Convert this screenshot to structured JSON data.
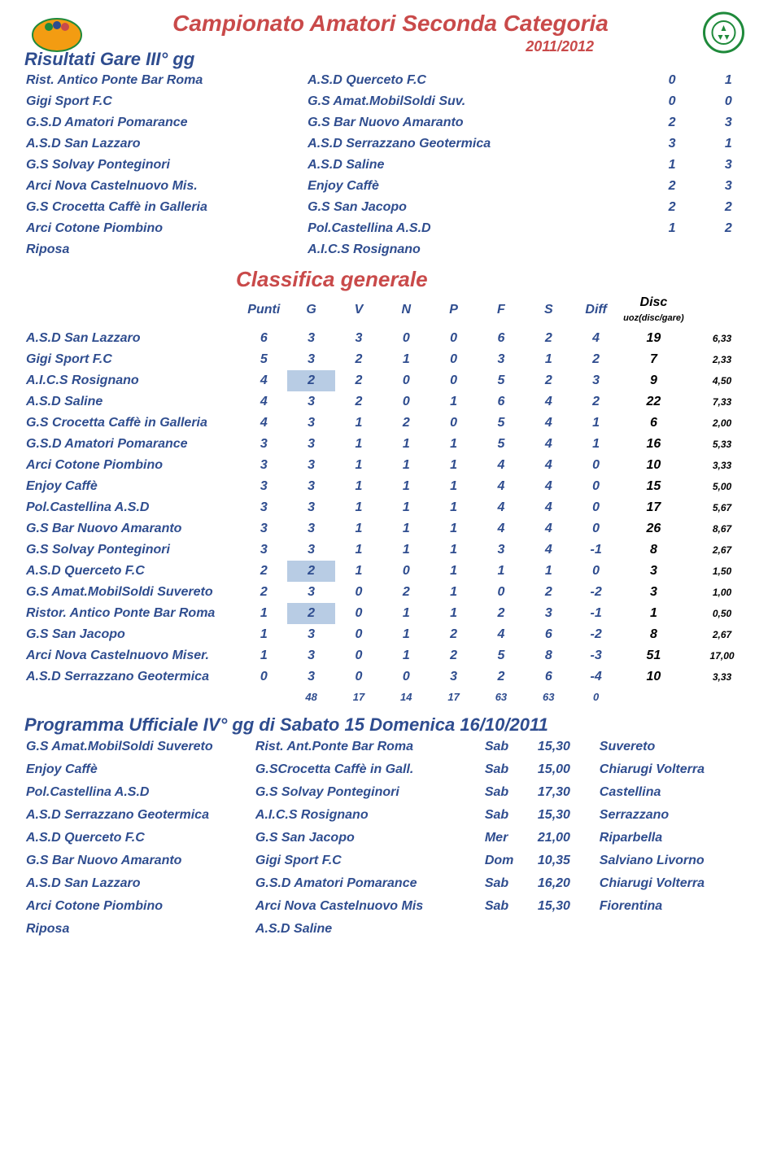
{
  "header": {
    "main_title": "Campionato Amatori Seconda Categoria",
    "season": "2011/2012",
    "sub_title": "Risultati Gare III° gg"
  },
  "results": [
    {
      "home": "Rist. Antico Ponte Bar Roma",
      "away": "A.S.D Querceto F.C",
      "h": "0",
      "a": "1"
    },
    {
      "home": "Gigi Sport F.C",
      "away": "G.S Amat.MobilSoldi Suv.",
      "h": "0",
      "a": "0"
    },
    {
      "home": "G.S.D Amatori Pomarance",
      "away": "G.S Bar Nuovo Amaranto",
      "h": "2",
      "a": "3"
    },
    {
      "home": "A.S.D San Lazzaro",
      "away": "A.S.D Serrazzano Geotermica",
      "h": "3",
      "a": "1"
    },
    {
      "home": "G.S Solvay Ponteginori",
      "away": "A.S.D Saline",
      "h": "1",
      "a": "3"
    },
    {
      "home": "Arci Nova Castelnuovo Mis.",
      "away": "Enjoy Caffè",
      "h": "2",
      "a": "3"
    },
    {
      "home": "G.S Crocetta Caffè in Galleria",
      "away": "G.S San Jacopo",
      "h": "2",
      "a": "2"
    },
    {
      "home": "Arci Cotone Piombino",
      "away": "Pol.Castellina A.S.D",
      "h": "1",
      "a": "2"
    },
    {
      "home": "Riposa",
      "away": "A.I.C.S Rosignano",
      "h": "",
      "a": ""
    }
  ],
  "standings_heading": "Classifica generale",
  "standings_headers": {
    "punti": "Punti",
    "g": "G",
    "v": "V",
    "n": "N",
    "p": "P",
    "f": "F",
    "s": "S",
    "diff": "Diff",
    "disc": "Disc",
    "quoz": "uoz(disc/gare)"
  },
  "standings": [
    {
      "team": "A.S.D San Lazzaro",
      "pts": "6",
      "g": "3",
      "v": "3",
      "n": "0",
      "p": "0",
      "f": "6",
      "s": "2",
      "diff": "4",
      "disc": "19",
      "quoz": "6,33",
      "hl": false
    },
    {
      "team": "Gigi Sport F.C",
      "pts": "5",
      "g": "3",
      "v": "2",
      "n": "1",
      "p": "0",
      "f": "3",
      "s": "1",
      "diff": "2",
      "disc": "7",
      "quoz": "2,33",
      "hl": false
    },
    {
      "team": "A.I.C.S Rosignano",
      "pts": "4",
      "g": "2",
      "v": "2",
      "n": "0",
      "p": "0",
      "f": "5",
      "s": "2",
      "diff": "3",
      "disc": "9",
      "quoz": "4,50",
      "hl": true
    },
    {
      "team": "A.S.D Saline",
      "pts": "4",
      "g": "3",
      "v": "2",
      "n": "0",
      "p": "1",
      "f": "6",
      "s": "4",
      "diff": "2",
      "disc": "22",
      "quoz": "7,33",
      "hl": false
    },
    {
      "team": "G.S Crocetta Caffè in Galleria",
      "pts": "4",
      "g": "3",
      "v": "1",
      "n": "2",
      "p": "0",
      "f": "5",
      "s": "4",
      "diff": "1",
      "disc": "6",
      "quoz": "2,00",
      "hl": false
    },
    {
      "team": "G.S.D Amatori Pomarance",
      "pts": "3",
      "g": "3",
      "v": "1",
      "n": "1",
      "p": "1",
      "f": "5",
      "s": "4",
      "diff": "1",
      "disc": "16",
      "quoz": "5,33",
      "hl": false
    },
    {
      "team": "Arci Cotone Piombino",
      "pts": "3",
      "g": "3",
      "v": "1",
      "n": "1",
      "p": "1",
      "f": "4",
      "s": "4",
      "diff": "0",
      "disc": "10",
      "quoz": "3,33",
      "hl": false
    },
    {
      "team": "Enjoy Caffè",
      "pts": "3",
      "g": "3",
      "v": "1",
      "n": "1",
      "p": "1",
      "f": "4",
      "s": "4",
      "diff": "0",
      "disc": "15",
      "quoz": "5,00",
      "hl": false
    },
    {
      "team": "Pol.Castellina A.S.D",
      "pts": "3",
      "g": "3",
      "v": "1",
      "n": "1",
      "p": "1",
      "f": "4",
      "s": "4",
      "diff": "0",
      "disc": "17",
      "quoz": "5,67",
      "hl": false
    },
    {
      "team": "G.S Bar Nuovo Amaranto",
      "pts": "3",
      "g": "3",
      "v": "1",
      "n": "1",
      "p": "1",
      "f": "4",
      "s": "4",
      "diff": "0",
      "disc": "26",
      "quoz": "8,67",
      "hl": false
    },
    {
      "team": "G.S Solvay Ponteginori",
      "pts": "3",
      "g": "3",
      "v": "1",
      "n": "1",
      "p": "1",
      "f": "3",
      "s": "4",
      "diff": "-1",
      "disc": "8",
      "quoz": "2,67",
      "hl": false
    },
    {
      "team": "A.S.D Querceto F.C",
      "pts": "2",
      "g": "2",
      "v": "1",
      "n": "0",
      "p": "1",
      "f": "1",
      "s": "1",
      "diff": "0",
      "disc": "3",
      "quoz": "1,50",
      "hl": true
    },
    {
      "team": "G.S Amat.MobilSoldi Suvereto",
      "pts": "2",
      "g": "3",
      "v": "0",
      "n": "2",
      "p": "1",
      "f": "0",
      "s": "2",
      "diff": "-2",
      "disc": "3",
      "quoz": "1,00",
      "hl": false
    },
    {
      "team": "Ristor. Antico Ponte Bar Roma",
      "pts": "1",
      "g": "2",
      "v": "0",
      "n": "1",
      "p": "1",
      "f": "2",
      "s": "3",
      "diff": "-1",
      "disc": "1",
      "quoz": "0,50",
      "hl": true
    },
    {
      "team": "G.S San Jacopo",
      "pts": "1",
      "g": "3",
      "v": "0",
      "n": "1",
      "p": "2",
      "f": "4",
      "s": "6",
      "diff": "-2",
      "disc": "8",
      "quoz": "2,67",
      "hl": false
    },
    {
      "team": "Arci Nova Castelnuovo Miser.",
      "pts": "1",
      "g": "3",
      "v": "0",
      "n": "1",
      "p": "2",
      "f": "5",
      "s": "8",
      "diff": "-3",
      "disc": "51",
      "quoz": "17,00",
      "hl": false
    },
    {
      "team": "A.S.D Serrazzano Geotermica",
      "pts": "0",
      "g": "3",
      "v": "0",
      "n": "0",
      "p": "3",
      "f": "2",
      "s": "6",
      "diff": "-4",
      "disc": "10",
      "quoz": "3,33",
      "hl": false
    }
  ],
  "totals": {
    "g": "48",
    "v": "17",
    "n": "14",
    "p": "17",
    "f": "63",
    "s": "63",
    "diff": "0"
  },
  "program_title": "Programma Ufficiale IV° gg di Sabato 15 Domenica 16/10/2011",
  "program": [
    {
      "h": "G.S Amat.MobilSoldi Suvereto",
      "a": "Rist. Ant.Ponte Bar Roma",
      "d": "Sab",
      "t": "15,30",
      "l": "Suvereto"
    },
    {
      "h": "Enjoy Caffè",
      "a": "G.SCrocetta Caffè in Gall.",
      "d": "Sab",
      "t": "15,00",
      "l": "Chiarugi Volterra"
    },
    {
      "h": "Pol.Castellina A.S.D",
      "a": "G.S Solvay Ponteginori",
      "d": "Sab",
      "t": "17,30",
      "l": "Castellina"
    },
    {
      "h": "A.S.D Serrazzano Geotermica",
      "a": "A.I.C.S Rosignano",
      "d": "Sab",
      "t": "15,30",
      "l": "Serrazzano"
    },
    {
      "h": "A.S.D Querceto F.C",
      "a": "G.S San Jacopo",
      "d": "Mer",
      "t": "21,00",
      "l": "Riparbella"
    },
    {
      "h": "G.S Bar Nuovo Amaranto",
      "a": "Gigi Sport F.C",
      "d": "Dom",
      "t": "10,35",
      "l": "Salviano Livorno"
    },
    {
      "h": "A.S.D San Lazzaro",
      "a": "G.S.D Amatori Pomarance",
      "d": "Sab",
      "t": "16,20",
      "l": "Chiarugi Volterra"
    },
    {
      "h": "Arci Cotone Piombino",
      "a": "Arci Nova Castelnuovo Mis",
      "d": "Sab",
      "t": "15,30",
      "l": "Fiorentina"
    },
    {
      "h": "Riposa",
      "a": "A.S.D Saline",
      "d": "",
      "t": "",
      "l": ""
    }
  ]
}
